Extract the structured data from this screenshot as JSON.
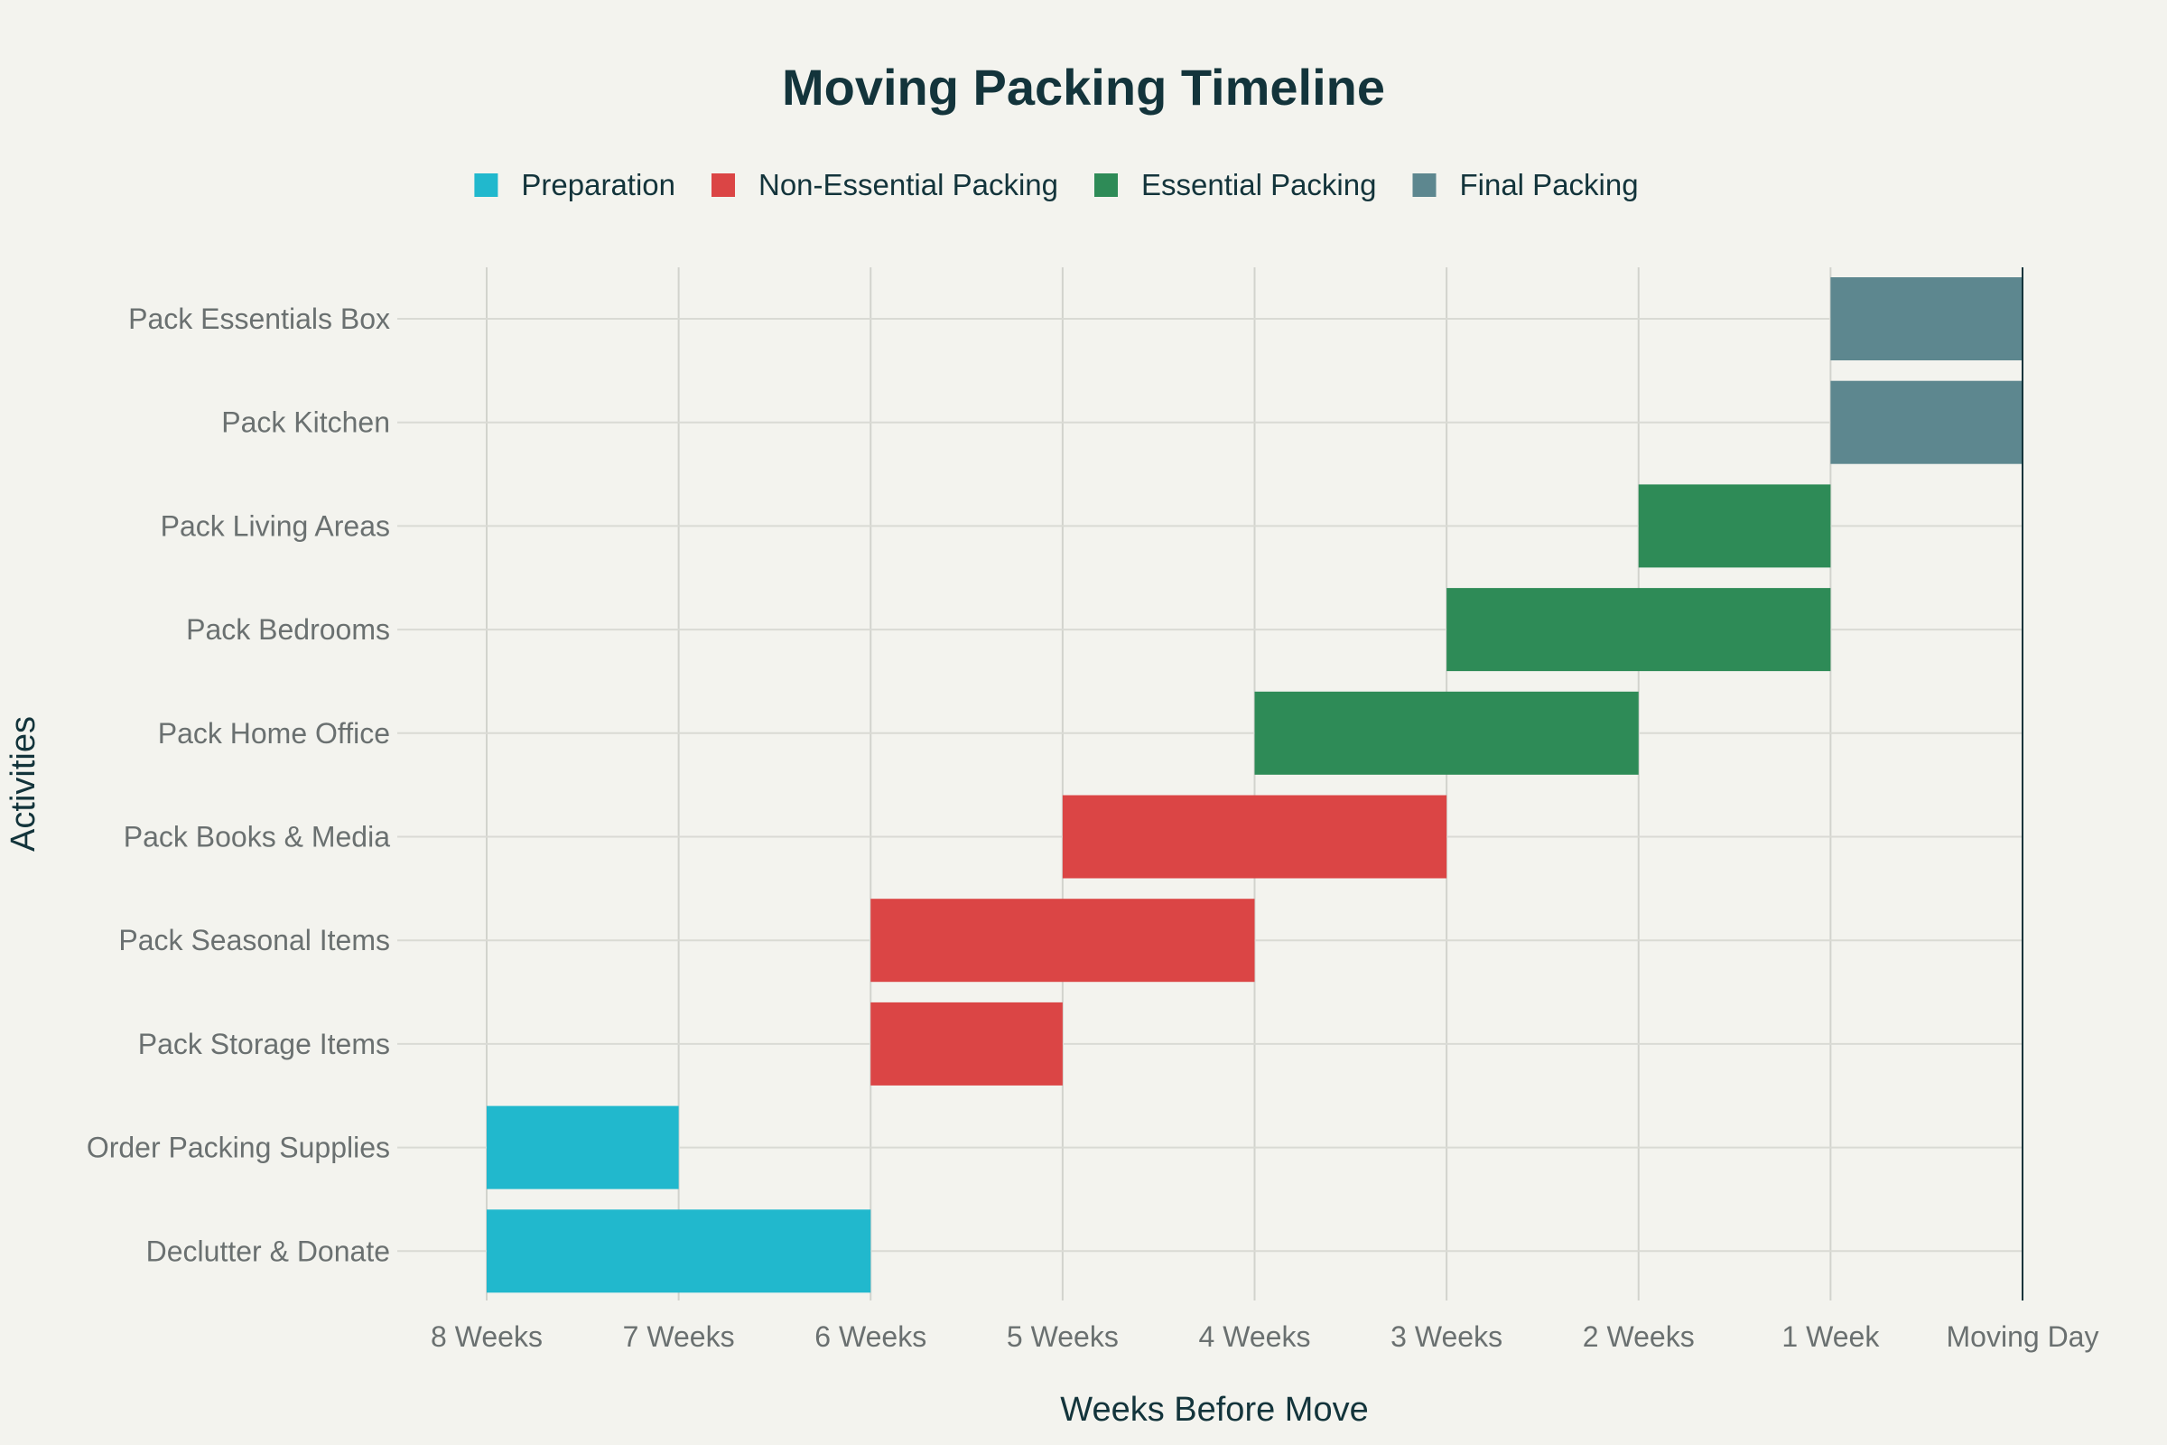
{
  "chart_data": {
    "type": "gantt",
    "title": "Moving Packing Timeline",
    "xlabel": "Weeks Before Move",
    "ylabel": "Activities",
    "x_unit": "weeks before move",
    "xlim": [
      8,
      0
    ],
    "x_ticks": [
      {
        "value": 8,
        "label": "8 Weeks"
      },
      {
        "value": 7,
        "label": "7 Weeks"
      },
      {
        "value": 6,
        "label": "6 Weeks"
      },
      {
        "value": 5,
        "label": "5 Weeks"
      },
      {
        "value": 4,
        "label": "4 Weeks"
      },
      {
        "value": 3,
        "label": "3 Weeks"
      },
      {
        "value": 2,
        "label": "2 Weeks"
      },
      {
        "value": 1,
        "label": "1 Week"
      },
      {
        "value": 0,
        "label": "Moving Day"
      }
    ],
    "legend_position": "top-center",
    "grid": true,
    "series": [
      {
        "name": "Preparation",
        "color": "#21b8cd"
      },
      {
        "name": "Non-Essential Packing",
        "color": "#db4545"
      },
      {
        "name": "Essential Packing",
        "color": "#2e8b57"
      },
      {
        "name": "Final Packing",
        "color": "#5d878f"
      }
    ],
    "tasks": [
      {
        "name": "Declutter & Donate",
        "start": 8,
        "end": 6,
        "series": "Preparation"
      },
      {
        "name": "Order Packing Supplies",
        "start": 8,
        "end": 7,
        "series": "Preparation"
      },
      {
        "name": "Pack Storage Items",
        "start": 6,
        "end": 5,
        "series": "Non-Essential Packing"
      },
      {
        "name": "Pack Seasonal Items",
        "start": 6,
        "end": 4,
        "series": "Non-Essential Packing"
      },
      {
        "name": "Pack Books & Media",
        "start": 5,
        "end": 3,
        "series": "Non-Essential Packing"
      },
      {
        "name": "Pack Home Office",
        "start": 4,
        "end": 2,
        "series": "Essential Packing"
      },
      {
        "name": "Pack Bedrooms",
        "start": 3,
        "end": 1,
        "series": "Essential Packing"
      },
      {
        "name": "Pack Living Areas",
        "start": 2,
        "end": 1,
        "series": "Essential Packing"
      },
      {
        "name": "Pack Kitchen",
        "start": 1,
        "end": 0,
        "series": "Final Packing"
      },
      {
        "name": "Pack Essentials Box",
        "start": 1,
        "end": 0,
        "series": "Final Packing"
      }
    ]
  }
}
